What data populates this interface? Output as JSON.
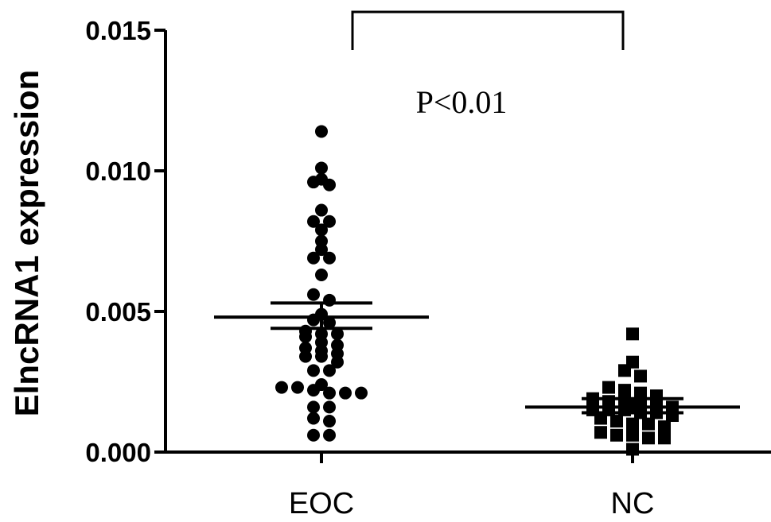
{
  "chart_data": {
    "type": "scatter",
    "ylabel": "ElncRNA1 expression",
    "xlabel": "",
    "ylim": [
      0,
      0.015
    ],
    "yticks": [
      "0.000",
      "0.005",
      "0.010",
      "0.015"
    ],
    "categories": [
      "EOC",
      "NC"
    ],
    "grid": false,
    "series": [
      {
        "category": "EOC",
        "marker": "circle",
        "values": [
          0.0114,
          0.0101,
          0.0097,
          0.0096,
          0.0095,
          0.0086,
          0.0082,
          0.0082,
          0.0079,
          0.0075,
          0.0072,
          0.0069,
          0.0069,
          0.0063,
          0.0056,
          0.0054,
          0.0049,
          0.0047,
          0.0046,
          0.0043,
          0.0042,
          0.0042,
          0.0041,
          0.0039,
          0.0038,
          0.0037,
          0.0036,
          0.0035,
          0.0034,
          0.0034,
          0.0032,
          0.0029,
          0.0029,
          0.0024,
          0.0023,
          0.0023,
          0.0022,
          0.0021,
          0.0021,
          0.0021,
          0.0016,
          0.0016,
          0.0012,
          0.0011,
          0.0006,
          0.0006
        ],
        "mean": 0.0048,
        "sem": [
          0.0044,
          0.0053
        ]
      },
      {
        "category": "NC",
        "marker": "square",
        "values": [
          0.0042,
          0.0032,
          0.0029,
          0.0027,
          0.0023,
          0.0022,
          0.0021,
          0.002,
          0.0019,
          0.0018,
          0.0018,
          0.0017,
          0.0017,
          0.0016,
          0.0015,
          0.0015,
          0.0015,
          0.0014,
          0.0014,
          0.0013,
          0.0012,
          0.0011,
          0.001,
          0.001,
          0.0009,
          0.0007,
          0.0006,
          0.0006,
          0.0005,
          0.0005,
          0.0001
        ],
        "mean": 0.0016,
        "sem": [
          0.0014,
          0.0019
        ]
      }
    ],
    "annotation": "P<0.01"
  }
}
